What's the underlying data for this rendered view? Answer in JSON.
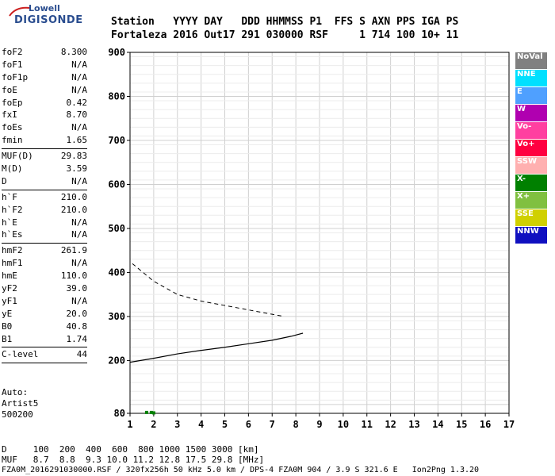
{
  "logo": {
    "line1": "Lowell",
    "line2": "DIGISONDE"
  },
  "header": {
    "row1": "Station   YYYY DAY   DDD HHMMSS P1  FFS S AXN PPS IGA PS",
    "row2": "Fortaleza 2016 Out17 291 030000 RSF     1 714 100 10+ 11"
  },
  "params": [
    [
      {
        "name": "foF2",
        "value": "8.300"
      },
      {
        "name": "foF1",
        "value": "N/A"
      },
      {
        "name": "foF1p",
        "value": "N/A"
      },
      {
        "name": "foE",
        "value": "N/A"
      },
      {
        "name": "foEp",
        "value": "0.42"
      },
      {
        "name": "fxI",
        "value": "8.70"
      },
      {
        "name": "foEs",
        "value": "N/A"
      },
      {
        "name": "fmin",
        "value": "1.65"
      }
    ],
    [
      {
        "name": "MUF(D)",
        "value": "29.83"
      },
      {
        "name": "M(D)",
        "value": "3.59"
      },
      {
        "name": "D",
        "value": "N/A"
      }
    ],
    [
      {
        "name": "h`F",
        "value": "210.0"
      },
      {
        "name": "h`F2",
        "value": "210.0"
      },
      {
        "name": "h`E",
        "value": "N/A"
      },
      {
        "name": "h`Es",
        "value": "N/A"
      }
    ],
    [
      {
        "name": "hmF2",
        "value": "261.9"
      },
      {
        "name": "hmF1",
        "value": "N/A"
      },
      {
        "name": "hmE",
        "value": "110.0"
      },
      {
        "name": "yF2",
        "value": "39.0"
      },
      {
        "name": "yF1",
        "value": "N/A"
      },
      {
        "name": "yE",
        "value": "20.0"
      },
      {
        "name": "B0",
        "value": "40.8"
      },
      {
        "name": "B1",
        "value": "1.74"
      }
    ],
    [
      {
        "name": "C-level",
        "value": "44"
      }
    ]
  ],
  "auto": {
    "line1": "Auto:",
    "line2": "Artist5",
    "line3": "500200"
  },
  "footer": {
    "d_row": "D     100  200  400  600  800 1000 1500 3000 [km]",
    "muf_row": "MUF   8.7  8.8  9.3 10.0 11.2 12.8 17.5 29.8 [MHz]",
    "file_row": "FZA0M_2016291030000.RSF / 320fx256h 50 kHz 5.0 km / DPS-4 FZA0M 904 / 3.9 S 321.6 E   Ion2Png 1.3.20"
  },
  "legend": [
    {
      "label": "NoVal",
      "color": "#808080"
    },
    {
      "label": "NNE",
      "color": "#00e0ff"
    },
    {
      "label": "E",
      "color": "#4fa0ff"
    },
    {
      "label": "W",
      "color": "#b000b0"
    },
    {
      "label": "Vo-",
      "color": "#ff40a0"
    },
    {
      "label": "Vo+",
      "color": "#ff0040"
    },
    {
      "label": "SSW",
      "color": "#ffb0b0"
    },
    {
      "label": "X-",
      "color": "#008000"
    },
    {
      "label": "X+",
      "color": "#80c040"
    },
    {
      "label": "SSE",
      "color": "#d0d000"
    },
    {
      "label": "NNW",
      "color": "#1010c0"
    }
  ],
  "chart_data": {
    "type": "scatter",
    "xlim": [
      1,
      17
    ],
    "ylim": [
      80,
      900
    ],
    "x_ticks": [
      1,
      2,
      3,
      4,
      5,
      6,
      7,
      8,
      9,
      10,
      11,
      12,
      13,
      14,
      15,
      16,
      17
    ],
    "y_ticks": [
      80,
      200,
      300,
      400,
      500,
      600,
      700,
      800,
      900
    ],
    "grid": true,
    "legend_position": "right",
    "series": [
      {
        "name": "X-",
        "points": [
          [
            1.7,
            82
          ],
          [
            1.9,
            82
          ],
          [
            2.0,
            81
          ]
        ]
      }
    ],
    "profile_curve": [
      [
        1.0,
        196
      ],
      [
        2.0,
        205
      ],
      [
        3.0,
        215
      ],
      [
        4.0,
        223
      ],
      [
        5.0,
        230
      ],
      [
        6.0,
        238
      ],
      [
        7.0,
        246
      ],
      [
        7.8,
        255
      ],
      [
        8.3,
        262
      ]
    ],
    "dashed_curve": [
      [
        1.1,
        420
      ],
      [
        2.0,
        380
      ],
      [
        3.0,
        350
      ],
      [
        4.0,
        335
      ],
      [
        5.0,
        325
      ],
      [
        6.0,
        315
      ],
      [
        7.0,
        305
      ],
      [
        7.5,
        300
      ]
    ]
  }
}
